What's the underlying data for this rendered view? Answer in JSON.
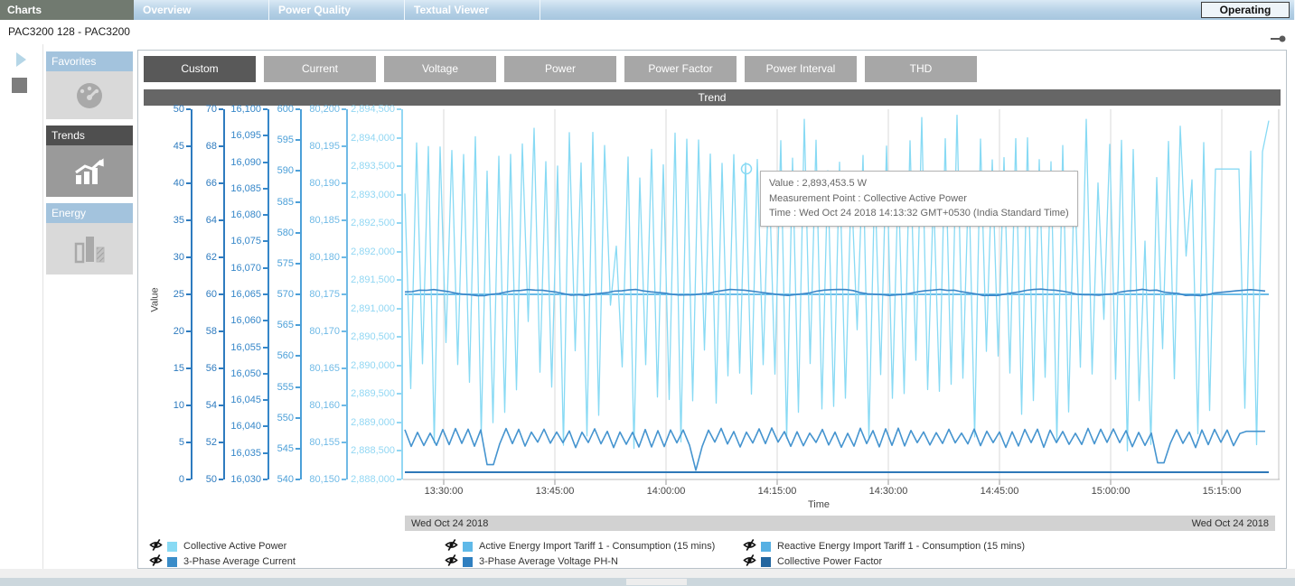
{
  "top_tabs": {
    "items": [
      {
        "label": "Charts",
        "active": true
      },
      {
        "label": "Overview",
        "active": false
      },
      {
        "label": "Power Quality",
        "active": false
      },
      {
        "label": "Textual Viewer",
        "active": false
      }
    ],
    "status_button": "Operating"
  },
  "breadcrumb": "PAC3200 128 - PAC3200",
  "sidebar": {
    "groups": [
      {
        "label": "Favorites",
        "icon": "gauge-icon",
        "selected": false
      },
      {
        "label": "Trends",
        "icon": "trend-arrow-icon",
        "selected": true
      },
      {
        "label": "Energy",
        "icon": "energy-bars-icon",
        "selected": false
      }
    ]
  },
  "chart_tabs": {
    "selected": "Custom",
    "items": [
      "Custom",
      "Current",
      "Voltage",
      "Power",
      "Power Factor",
      "Power Interval",
      "THD"
    ]
  },
  "panel_title": "Trend",
  "tooltip": {
    "lines": [
      "Value : 2,893,453.5 W",
      "Measurement Point : Collective Active Power",
      "Time : Wed Oct 24 2018 14:13:32 GMT+0530 (India Standard Time)"
    ]
  },
  "date_bar": {
    "left": "Wed Oct 24 2018",
    "right": "Wed Oct 24 2018"
  },
  "legend": {
    "visibility_icon": "eye-slash-icon",
    "items": [
      {
        "label": "Collective Active Power",
        "color": "#88daf4"
      },
      {
        "label": "Active Energy Import Tariff 1 - Consumption (15 mins)",
        "color": "#5fb9e8"
      },
      {
        "label": "Reactive Energy Import Tariff 1 - Consumption (15 mins)",
        "color": "#57b0e3"
      },
      {
        "label": "3-Phase Average Current",
        "color": "#3a8cc8"
      },
      {
        "label": "3-Phase Average Voltage PH-N",
        "color": "#2f7fc0"
      },
      {
        "label": "Collective Power Factor",
        "color": "#2266a0"
      }
    ]
  },
  "chart_data": {
    "type": "line",
    "title": "Trend",
    "xlabel": "Time",
    "ylabel": "Value",
    "x_ticks": [
      "13:30:00",
      "13:45:00",
      "14:00:00",
      "14:15:00",
      "14:30:00",
      "14:45:00",
      "15:00:00",
      "15:15:00"
    ],
    "x_start": "13:25:00",
    "x_end": "15:23:00",
    "grid": "vertical",
    "legend_position": "bottom",
    "axes": [
      {
        "min": 0,
        "max": 50,
        "step": 5,
        "color": "#2e7bbf"
      },
      {
        "min": 50,
        "max": 70,
        "step": 2,
        "color": "#2e7bbf"
      },
      {
        "min": 16030,
        "max": 16100,
        "step": 5,
        "color": "#3687c9"
      },
      {
        "min": 540,
        "max": 600,
        "step": 5,
        "color": "#4b9fd8"
      },
      {
        "min": 80150,
        "max": 80200,
        "step": 5,
        "color": "#70bae6"
      },
      {
        "min": 2888000,
        "max": 2894500,
        "step": 500,
        "color": "#92d7f3"
      }
    ],
    "series": [
      {
        "name": "Active Energy Import Tariff 1 - Consumption (15 mins)",
        "color": "#5fb9e8",
        "axis": 2,
        "pattern": "flat",
        "value": 16065,
        "width": 1.4
      },
      {
        "name": "Reactive Energy Import Tariff 1 - Consumption (15 mins)",
        "color": "#57b0e3",
        "axis": 4,
        "pattern": "flat",
        "value": 80175,
        "width": 1.4
      },
      {
        "name": "Collective Active Power",
        "color": "#88daf4",
        "axis": 5,
        "pattern": "spikes",
        "high_range": [
          2893200,
          2894400
        ],
        "low_range": [
          2888500,
          2890300
        ],
        "period_minutes": 2,
        "plateau": {
          "x_frac": [
            0.925,
            0.958
          ],
          "value": 2893450
        },
        "seed": 11,
        "width": 1.3
      },
      {
        "name": "3-Phase Average Voltage PH-N",
        "color": "#3a86c8",
        "axis": 3,
        "pattern": "ripple",
        "base": 570.3,
        "amplitude": 0.45,
        "seed": 3,
        "width": 1.6
      },
      {
        "name": "3-Phase Average Current",
        "color": "#4594cf",
        "axis": 1,
        "pattern": "zigzag",
        "base": 52.25,
        "amplitude": 0.38,
        "dips": [
          {
            "x_frac": 0.1,
            "value": 50.8
          },
          {
            "x_frac": 0.335,
            "value": 50.5
          },
          {
            "x_frac": 0.865,
            "value": 50.9
          }
        ],
        "seed": 5,
        "width": 1.6
      },
      {
        "name": "Collective Power Factor",
        "color": "#2e78b8",
        "axis": 0,
        "pattern": "flat",
        "value": 0.98,
        "width": 2
      }
    ],
    "tooltip_point": {
      "series": "Collective Active Power",
      "x_frac": 0.392,
      "value": 2893453.5
    }
  }
}
